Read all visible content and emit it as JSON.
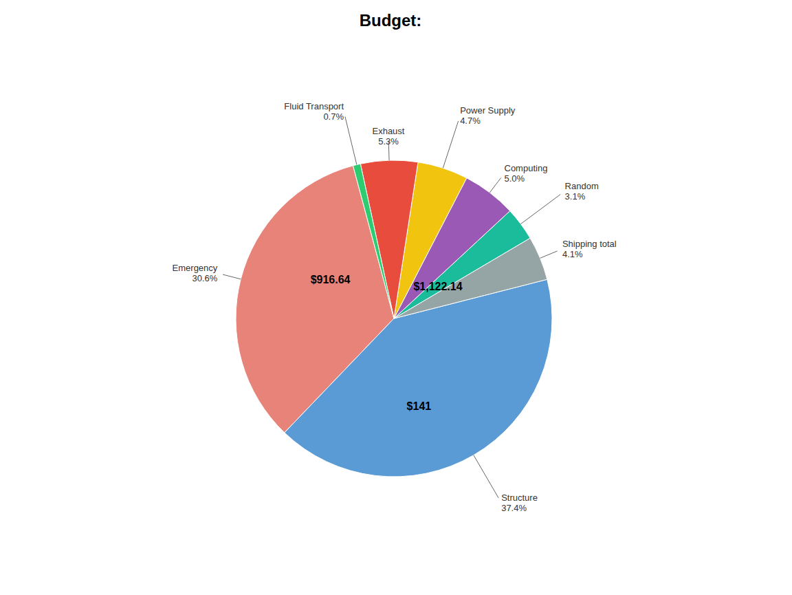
{
  "chart_data": {
    "type": "pie",
    "title": "Budget:",
    "categories": [
      "Emergency",
      "Structure",
      "Shipping total",
      "Random",
      "Computing",
      "Power Supply",
      "Exhaust",
      "Fluid Transport"
    ],
    "values": [
      30.6,
      37.4,
      4.1,
      3.1,
      5.0,
      4.7,
      5.3,
      0.7
    ],
    "value_labels": [
      "30.6%",
      "37.4%",
      "4.1%",
      "3.1%",
      "5.0%",
      "4.7%",
      "5.3%",
      "0.7%"
    ],
    "colors": [
      "#e8837a",
      "#5b9bd5",
      "#95a5a6",
      "#1abc9c",
      "#9b59b6",
      "#f1c40f",
      "#e74c3c",
      "#2ecc71"
    ],
    "data_labels": true,
    "annotations": [
      "$916.64",
      "$1,122.14",
      "$141"
    ]
  }
}
